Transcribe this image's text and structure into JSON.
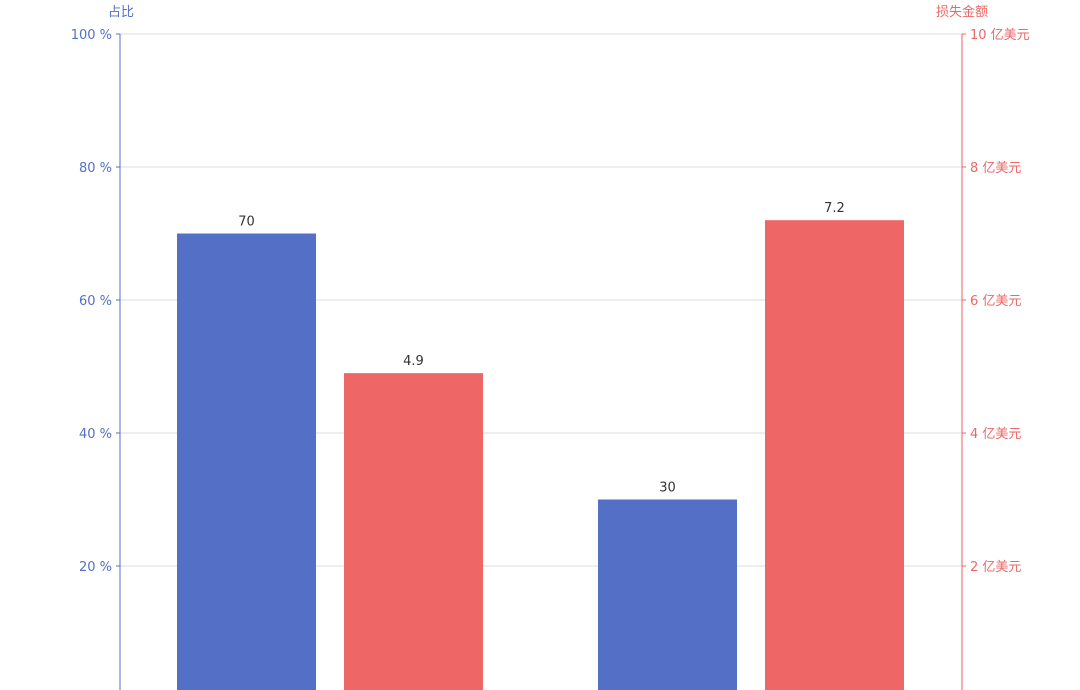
{
  "chart_data": {
    "type": "bar",
    "categories": [
      "",
      ""
    ],
    "series": [
      {
        "axis": "left",
        "color": "#5470c6",
        "values": [
          70,
          30
        ]
      },
      {
        "axis": "right",
        "color": "#ee6666",
        "values": [
          4.9,
          7.2
        ]
      }
    ],
    "y_left": {
      "label": "占比",
      "color": "#5470c6",
      "range": [
        0,
        100
      ],
      "ticks": [
        20,
        40,
        60,
        80,
        100
      ],
      "tick_labels": [
        "20 %",
        "40 %",
        "60 %",
        "80 %",
        "100 %"
      ]
    },
    "y_right": {
      "label": "损失金额",
      "color": "#ee6666",
      "range": [
        0,
        10
      ],
      "ticks": [
        2,
        4,
        6,
        8,
        10
      ],
      "tick_labels": [
        "2 亿美元",
        "4 亿美元",
        "6 亿美元",
        "8 亿美元",
        "10 亿美元"
      ]
    },
    "data_labels": [
      {
        "series": 0,
        "index": 0,
        "text": "70"
      },
      {
        "series": 0,
        "index": 1,
        "text": "30"
      },
      {
        "series": 1,
        "index": 0,
        "text": "4.9"
      },
      {
        "series": 1,
        "index": 1,
        "text": "7.2"
      }
    ],
    "grid": true,
    "legend": "none"
  }
}
